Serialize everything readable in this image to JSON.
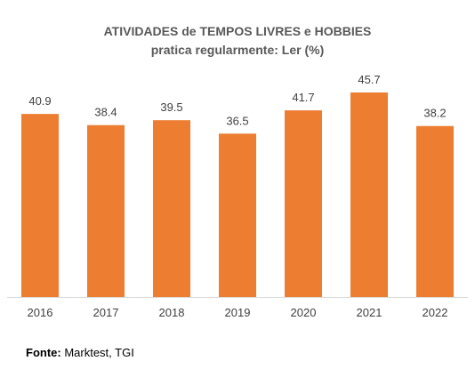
{
  "chart_data": {
    "type": "bar",
    "title": "ATIVIDADES de TEMPOS LIVRES e HOBBIES",
    "subtitle": "pratica regularmente: Ler (%)",
    "categories": [
      "2016",
      "2017",
      "2018",
      "2019",
      "2020",
      "2021",
      "2022"
    ],
    "values": [
      40.9,
      38.4,
      39.5,
      36.5,
      41.7,
      45.7,
      38.2
    ],
    "value_labels": [
      "40.9",
      "38.4",
      "39.5",
      "36.5",
      "41.7",
      "45.7",
      "38.2"
    ],
    "xlabel": "",
    "ylabel": "",
    "ylim": [
      0,
      50
    ],
    "grid": false,
    "legend": "none",
    "bar_color": "#ED7D31"
  },
  "source": {
    "label": "Fonte:",
    "text": " Marktest, TGI"
  }
}
